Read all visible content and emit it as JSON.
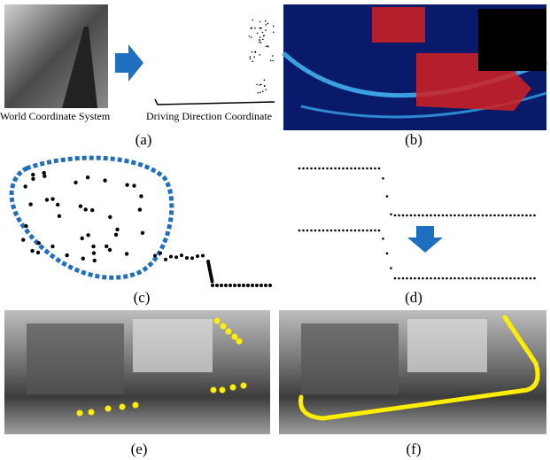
{
  "panels": [
    {
      "label": "(a)",
      "captions": [
        "World Coordinate System",
        "Driving Direction Coordinate"
      ]
    },
    {
      "label": "(b)"
    },
    {
      "label": "(c)"
    },
    {
      "label": "(d)"
    },
    {
      "label": "(e)"
    },
    {
      "label": "(f)"
    }
  ]
}
